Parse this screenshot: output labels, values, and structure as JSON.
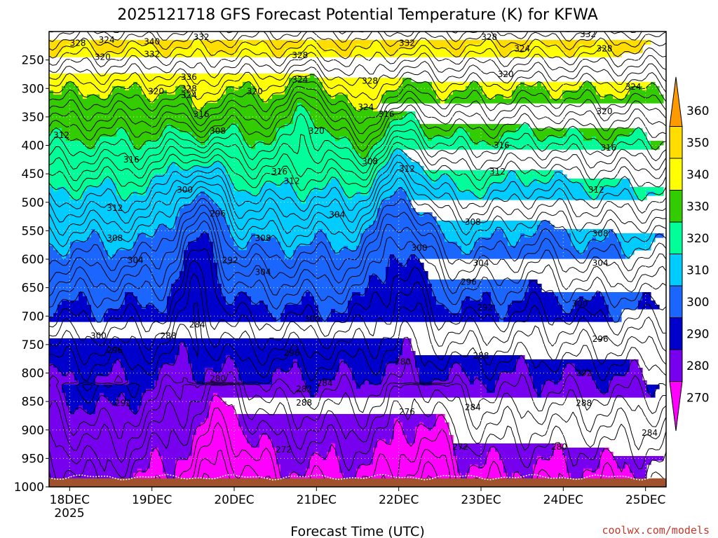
{
  "chart_data": {
    "type": "heatmap",
    "title": "2025121718 GFS Forecast Potential Temperature (K) for KFWA",
    "xlabel": "Forecast Time (UTC)",
    "ylabel": "",
    "x_ticks": [
      "18DEC",
      "19DEC",
      "20DEC",
      "21DEC",
      "22DEC",
      "23DEC",
      "24DEC",
      "25DEC"
    ],
    "x_sublabel": "2025",
    "x_range_days": [
      -0.25,
      7.25
    ],
    "y_ticks": [
      250,
      300,
      350,
      400,
      450,
      500,
      550,
      600,
      650,
      700,
      750,
      800,
      850,
      900,
      950,
      1000
    ],
    "y_range_hpa": [
      200,
      1000
    ],
    "colorbar": {
      "levels": [
        360,
        350,
        340,
        330,
        320,
        310,
        300,
        290,
        280,
        270
      ],
      "colors": [
        "#ff9900",
        "#ffdd00",
        "#ffff00",
        "#33cc00",
        "#00ff99",
        "#00ccff",
        "#1a66ff",
        "#0000cc",
        "#7700ee",
        "#ff00ff"
      ]
    },
    "ground_color": "#a0522d",
    "contour_labels": [
      {
        "v": "328",
        "d": 0.1,
        "p": 220
      },
      {
        "v": "324",
        "d": 0.45,
        "p": 215
      },
      {
        "v": "340",
        "d": 1.0,
        "p": 218
      },
      {
        "v": "332",
        "d": 1.6,
        "p": 210
      },
      {
        "v": "340",
        "d": 3.1,
        "p": 190
      },
      {
        "v": "332",
        "d": 4.1,
        "p": 220
      },
      {
        "v": "328",
        "d": 5.1,
        "p": 210
      },
      {
        "v": "332",
        "d": 6.3,
        "p": 205
      },
      {
        "v": "320",
        "d": 0.4,
        "p": 245
      },
      {
        "v": "332",
        "d": 1.0,
        "p": 240
      },
      {
        "v": "328",
        "d": 2.8,
        "p": 242
      },
      {
        "v": "324",
        "d": 5.5,
        "p": 230
      },
      {
        "v": "328",
        "d": 6.5,
        "p": 230
      },
      {
        "v": "336",
        "d": 1.45,
        "p": 280
      },
      {
        "v": "324",
        "d": 2.8,
        "p": 285
      },
      {
        "v": "328",
        "d": 3.65,
        "p": 287
      },
      {
        "v": "320",
        "d": 5.3,
        "p": 275
      },
      {
        "v": "328",
        "d": 1.45,
        "p": 300
      },
      {
        "v": "320",
        "d": 1.05,
        "p": 305
      },
      {
        "v": "324",
        "d": 1.45,
        "p": 312
      },
      {
        "v": "320",
        "d": 2.25,
        "p": 305
      },
      {
        "v": "324",
        "d": 6.85,
        "p": 297
      },
      {
        "v": "324",
        "d": 3.6,
        "p": 333
      },
      {
        "v": "316",
        "d": 1.6,
        "p": 345
      },
      {
        "v": "316",
        "d": 3.85,
        "p": 345
      },
      {
        "v": "320",
        "d": 6.5,
        "p": 340
      },
      {
        "v": "312",
        "d": -0.1,
        "p": 382
      },
      {
        "v": "308",
        "d": 1.8,
        "p": 375
      },
      {
        "v": "320",
        "d": 3.0,
        "p": 375
      },
      {
        "v": "316",
        "d": 0.75,
        "p": 425
      },
      {
        "v": "316",
        "d": 5.25,
        "p": 400
      },
      {
        "v": "316",
        "d": 6.55,
        "p": 404
      },
      {
        "v": "316",
        "d": 2.55,
        "p": 446
      },
      {
        "v": "312",
        "d": 2.7,
        "p": 463
      },
      {
        "v": "308",
        "d": 3.65,
        "p": 428
      },
      {
        "v": "312",
        "d": 4.1,
        "p": 441
      },
      {
        "v": "312",
        "d": 5.2,
        "p": 446
      },
      {
        "v": "300",
        "d": 1.4,
        "p": 478
      },
      {
        "v": "312",
        "d": 6.4,
        "p": 478
      },
      {
        "v": "312",
        "d": 0.55,
        "p": 510
      },
      {
        "v": "296",
        "d": 1.8,
        "p": 520
      },
      {
        "v": "304",
        "d": 3.25,
        "p": 522
      },
      {
        "v": "308",
        "d": 4.9,
        "p": 535
      },
      {
        "v": "308",
        "d": 0.55,
        "p": 563
      },
      {
        "v": "308",
        "d": 2.35,
        "p": 563
      },
      {
        "v": "308",
        "d": 6.45,
        "p": 555
      },
      {
        "v": "300",
        "d": 4.25,
        "p": 580
      },
      {
        "v": "304",
        "d": 0.8,
        "p": 602
      },
      {
        "v": "292",
        "d": 1.95,
        "p": 602
      },
      {
        "v": "304",
        "d": 5.0,
        "p": 607
      },
      {
        "v": "304",
        "d": 6.45,
        "p": 607
      },
      {
        "v": "304",
        "d": 2.35,
        "p": 623
      },
      {
        "v": "296",
        "d": 4.85,
        "p": 640
      },
      {
        "v": "300",
        "d": 6.2,
        "p": 678
      },
      {
        "v": "292",
        "d": 5.05,
        "p": 685
      },
      {
        "v": "300",
        "d": 2.95,
        "p": 705
      },
      {
        "v": "284",
        "d": 1.55,
        "p": 715
      },
      {
        "v": "288",
        "d": 1.2,
        "p": 735
      },
      {
        "v": "300",
        "d": 0.35,
        "p": 735
      },
      {
        "v": "296",
        "d": 6.45,
        "p": 740
      },
      {
        "v": "296",
        "d": 0.55,
        "p": 760
      },
      {
        "v": "296",
        "d": 2.7,
        "p": 765
      },
      {
        "v": "288",
        "d": 5.0,
        "p": 770
      },
      {
        "v": "280",
        "d": 4.05,
        "p": 780
      },
      {
        "v": "292",
        "d": 6.25,
        "p": 800
      },
      {
        "v": "280",
        "d": 1.8,
        "p": 810
      },
      {
        "v": "282",
        "d": 2.85,
        "p": 828
      },
      {
        "v": "284",
        "d": 3.1,
        "p": 818
      },
      {
        "v": "288",
        "d": 2.85,
        "p": 852
      },
      {
        "v": "288",
        "d": 6.25,
        "p": 853
      },
      {
        "v": "292",
        "d": 0.65,
        "p": 853
      },
      {
        "v": "284",
        "d": 4.9,
        "p": 860
      },
      {
        "v": "276",
        "d": 4.1,
        "p": 868
      },
      {
        "v": "284",
        "d": 7.05,
        "p": 905
      },
      {
        "v": "272",
        "d": 2.6,
        "p": 935
      },
      {
        "v": "272",
        "d": 4.75,
        "p": 930
      },
      {
        "v": "280",
        "d": 5.95,
        "p": 930
      }
    ]
  },
  "credit": "coolwx.com/models"
}
